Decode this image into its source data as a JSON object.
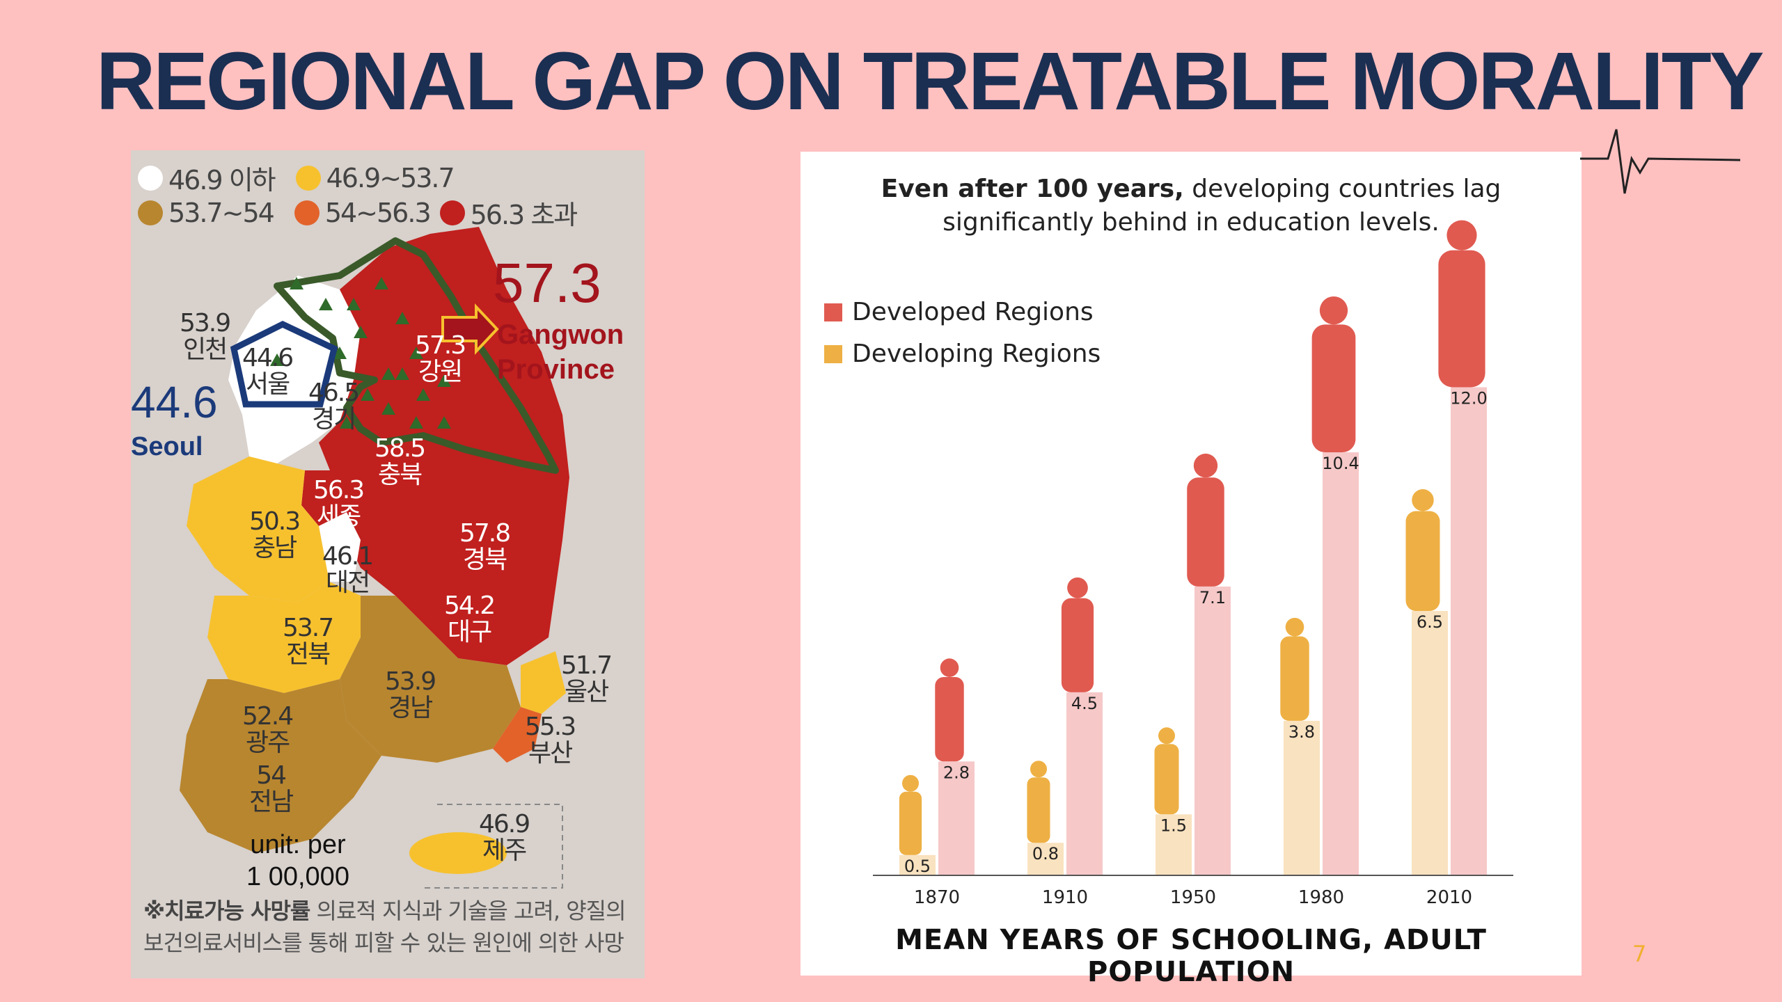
{
  "title": "REGIONAL GAP ON TREATABLE MORALITY",
  "map": {
    "legend": [
      {
        "label": "46.9 이하",
        "color": "#ffffff"
      },
      {
        "label": "46.9~53.7",
        "color": "#f7c12e"
      },
      {
        "label": "53.7~54",
        "color": "#b8862f"
      },
      {
        "label": "54~56.3",
        "color": "#e2622a"
      },
      {
        "label": "56.3 초과",
        "color": "#c0201e"
      }
    ],
    "regions": [
      {
        "value": "53.9",
        "name": "인천"
      },
      {
        "value": "44.6",
        "name": "서울"
      },
      {
        "value": "46.5",
        "name": "경기"
      },
      {
        "value": "57.3",
        "name": "강원"
      },
      {
        "value": "58.5",
        "name": "충북"
      },
      {
        "value": "56.3",
        "name": "세종"
      },
      {
        "value": "50.3",
        "name": "충남"
      },
      {
        "value": "46.1",
        "name": "대전"
      },
      {
        "value": "57.8",
        "name": "경북"
      },
      {
        "value": "54.2",
        "name": "대구"
      },
      {
        "value": "53.7",
        "name": "전북"
      },
      {
        "value": "53.9",
        "name": "경남"
      },
      {
        "value": "51.7",
        "name": "울산"
      },
      {
        "value": "55.3",
        "name": "부산"
      },
      {
        "value": "52.4",
        "name": "광주"
      },
      {
        "value": "54",
        "name": "전남"
      },
      {
        "value": "46.9",
        "name": "제주"
      }
    ],
    "highlight_gangwon": {
      "value": "57.3",
      "label_line1": "Gangwon",
      "label_line2": "Province"
    },
    "highlight_seoul": {
      "value": "44.6",
      "label": "Seoul"
    },
    "unit_line1": "unit: per",
    "unit_line2": "1 00,000",
    "note_bold": "※치료가능 사망률",
    "note_line1_rest": " 의료적 지식과 기술을 고려, 양질의",
    "note_line2": "보건의료서비스를 통해 피할 수 있는 원인에 의한 사망"
  },
  "chart": {
    "subtitle_bold": "Even after 100 years,",
    "subtitle_rest1": " developing countries lag",
    "subtitle_line2": "significantly behind in education levels.",
    "legend_developed": "Developed Regions",
    "legend_developing": "Developing Regions",
    "bottom_title": "MEAN YEARS OF SCHOOLING, ADULT POPULATION",
    "colors": {
      "developed": "#e05a50",
      "developing": "#eeb044",
      "developed_bar": "#f6c8c8",
      "developing_bar": "#f9e2bf"
    }
  },
  "chart_data": {
    "type": "bar",
    "categories": [
      "1870",
      "1910",
      "1950",
      "1980",
      "2010"
    ],
    "series": [
      {
        "name": "Developed Regions",
        "values": [
          2.8,
          4.5,
          7.1,
          10.4,
          12.0
        ]
      },
      {
        "name": "Developing Regions",
        "values": [
          0.5,
          0.8,
          1.5,
          3.8,
          6.5
        ]
      }
    ],
    "value_labels_developed": [
      "2.8",
      "4.5",
      "7.1",
      "10.4",
      "12.0"
    ],
    "value_labels_developing": [
      "0.5",
      "0.8",
      "1.5",
      "3.8",
      "6.5"
    ],
    "ylim": [
      0,
      13
    ],
    "title": "MEAN YEARS OF SCHOOLING, ADULT POPULATION"
  },
  "page_number": "7"
}
